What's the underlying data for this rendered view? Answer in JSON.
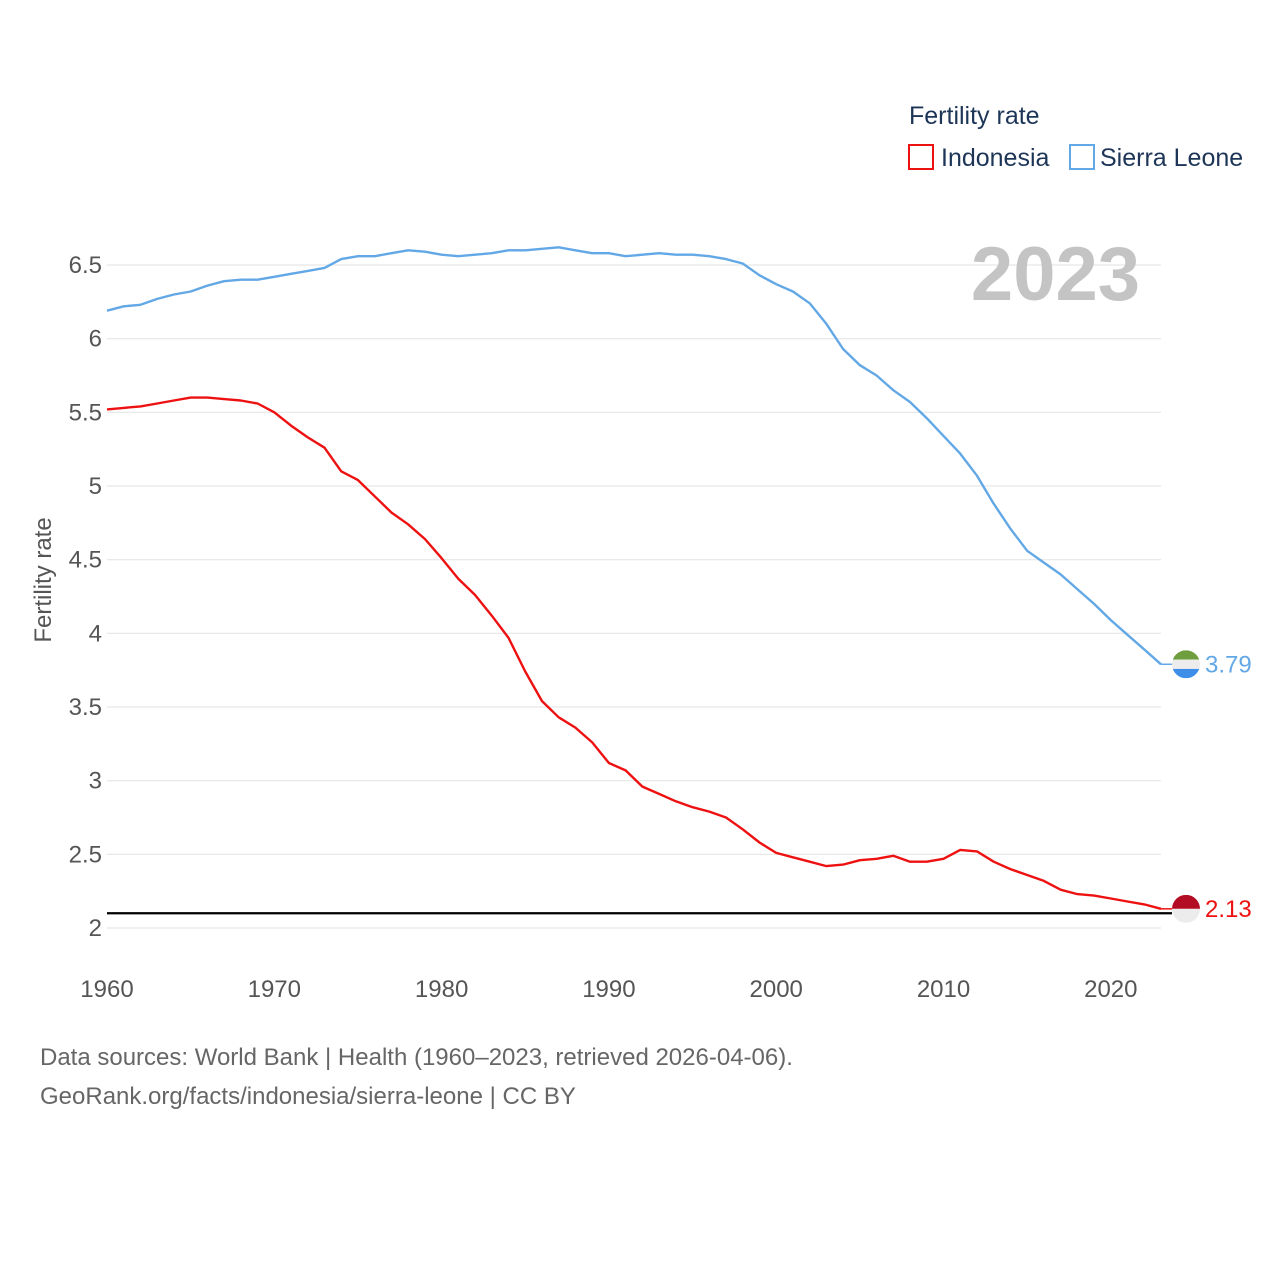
{
  "chart_data": {
    "type": "line",
    "legend_title": "Fertility rate",
    "ylabel": "Fertility rate",
    "current_year": "2023",
    "ylim": [
      2,
      6.6
    ],
    "xlim": [
      1960,
      2023
    ],
    "y_ticks": [
      2,
      2.5,
      3,
      3.5,
      4,
      4.5,
      5,
      5.5,
      6,
      6.5
    ],
    "y_tick_labels": [
      "2",
      "2.5",
      "3",
      "3.5",
      "4",
      "4.5",
      "5",
      "5.5",
      "6",
      "6.5"
    ],
    "x_ticks": [
      1960,
      1970,
      1980,
      1990,
      2000,
      2010,
      2020
    ],
    "x_tick_labels": [
      "1960",
      "1970",
      "1980",
      "1990",
      "2000",
      "2010",
      "2020"
    ],
    "reference_line": 2.1,
    "x": [
      1960,
      1961,
      1962,
      1963,
      1964,
      1965,
      1966,
      1967,
      1968,
      1969,
      1970,
      1971,
      1972,
      1973,
      1974,
      1975,
      1976,
      1977,
      1978,
      1979,
      1980,
      1981,
      1982,
      1983,
      1984,
      1985,
      1986,
      1987,
      1988,
      1989,
      1990,
      1991,
      1992,
      1993,
      1994,
      1995,
      1996,
      1997,
      1998,
      1999,
      2000,
      2001,
      2002,
      2003,
      2004,
      2005,
      2006,
      2007,
      2008,
      2009,
      2010,
      2011,
      2012,
      2013,
      2014,
      2015,
      2016,
      2017,
      2018,
      2019,
      2020,
      2021,
      2022,
      2023
    ],
    "series": [
      {
        "name": "Indonesia",
        "color": "#ee1111",
        "end_label": "2.13",
        "values": [
          5.52,
          5.53,
          5.54,
          5.56,
          5.58,
          5.6,
          5.6,
          5.59,
          5.58,
          5.56,
          5.5,
          5.41,
          5.33,
          5.26,
          5.1,
          5.04,
          4.93,
          4.82,
          4.74,
          4.64,
          4.51,
          4.37,
          4.26,
          4.12,
          3.97,
          3.74,
          3.54,
          3.43,
          3.36,
          3.26,
          3.12,
          3.07,
          2.96,
          2.91,
          2.86,
          2.82,
          2.79,
          2.75,
          2.67,
          2.58,
          2.51,
          2.48,
          2.45,
          2.42,
          2.43,
          2.46,
          2.47,
          2.49,
          2.45,
          2.45,
          2.47,
          2.53,
          2.52,
          2.45,
          2.4,
          2.36,
          2.32,
          2.26,
          2.23,
          2.22,
          2.2,
          2.18,
          2.16,
          2.13
        ]
      },
      {
        "name": "Sierra Leone",
        "color": "#63a8e6",
        "end_label": "3.79",
        "values": [
          6.19,
          6.22,
          6.23,
          6.27,
          6.3,
          6.32,
          6.36,
          6.39,
          6.4,
          6.4,
          6.42,
          6.44,
          6.46,
          6.48,
          6.54,
          6.56,
          6.56,
          6.58,
          6.6,
          6.59,
          6.57,
          6.56,
          6.57,
          6.58,
          6.6,
          6.6,
          6.61,
          6.62,
          6.6,
          6.58,
          6.58,
          6.56,
          6.57,
          6.58,
          6.57,
          6.57,
          6.56,
          6.54,
          6.51,
          6.43,
          6.37,
          6.32,
          6.24,
          6.1,
          5.93,
          5.82,
          5.75,
          5.65,
          5.57,
          5.46,
          5.34,
          5.22,
          5.07,
          4.88,
          4.71,
          4.56,
          4.48,
          4.4,
          4.3,
          4.2,
          4.09,
          3.99,
          3.89,
          3.79
        ]
      }
    ]
  },
  "footer": {
    "line1": "Data sources: World Bank | Health (1960–2023, retrieved 2026-04-06).",
    "line2": "GeoRank.org/facts/indonesia/sierra-leone | CC BY"
  },
  "colors": {
    "grid": "#e6e6e6",
    "reference": "#000000",
    "flag_id_red": "#b30d26",
    "flag_white": "#ececec",
    "flag_sl_green": "#6f9e3f",
    "flag_sl_blue": "#3d8ee8"
  }
}
